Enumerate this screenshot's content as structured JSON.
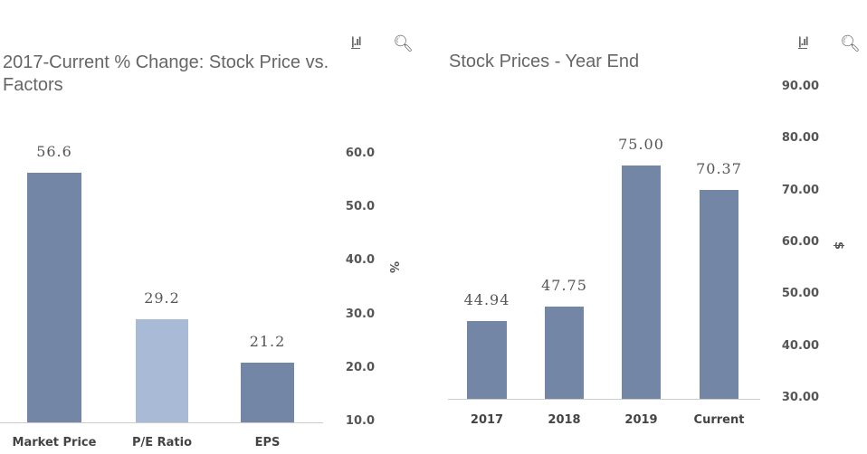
{
  "chart_data": [
    {
      "type": "bar",
      "title": "2017-Current % Change: Stock Price vs. Factors",
      "categories": [
        "Market Price",
        "P/E Ratio",
        "EPS"
      ],
      "values": [
        56.6,
        29.2,
        21.2
      ],
      "data_labels": [
        "56.6",
        "29.2",
        "21.2"
      ],
      "colors": [
        "#7386a5",
        "#a9bad6",
        "#7386a5"
      ],
      "ylabel": "%",
      "ylim": [
        10,
        60
      ],
      "yticks": [
        "10.0",
        "20.0",
        "30.0",
        "40.0",
        "50.0",
        "60.0"
      ],
      "grid": false
    },
    {
      "type": "bar",
      "title": "Stock Prices - Year End",
      "categories": [
        "2017",
        "2018",
        "2019",
        "Current"
      ],
      "values": [
        44.94,
        47.75,
        75.0,
        70.37
      ],
      "data_labels": [
        "44.94",
        "47.75",
        "75.00",
        "70.37"
      ],
      "colors": [
        "#7386a5",
        "#7386a5",
        "#7386a5",
        "#7386a5"
      ],
      "ylabel": "$",
      "ylim": [
        30,
        90
      ],
      "yticks": [
        "30.00",
        "40.00",
        "50.00",
        "60.00",
        "70.00",
        "80.00",
        "90.00"
      ],
      "grid": false
    }
  ],
  "icons": [
    "bar-chart-icon",
    "search-icon"
  ]
}
